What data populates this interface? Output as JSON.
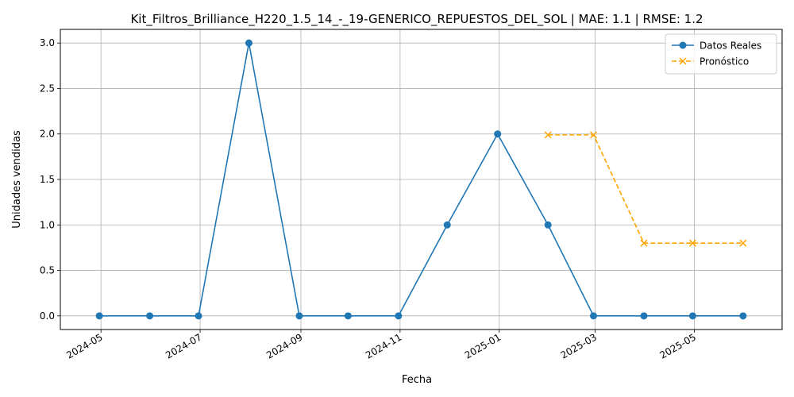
{
  "chart_data": {
    "type": "line",
    "title": "Kit_Filtros_Brilliance_H220_1.5_14_-_19-GENERICO_REPUESTOS_DEL_SOL | MAE: 1.1 | RMSE: 1.2",
    "xlabel": "Fecha",
    "ylabel": "Unidades vendidas",
    "xlim": [
      "2024-04-06",
      "2025-06-24"
    ],
    "ylim": [
      -0.15,
      3.15
    ],
    "grid": true,
    "legend_position": "top-right",
    "x_ticks": [
      "2024-05",
      "2024-07",
      "2024-09",
      "2024-11",
      "2025-01",
      "2025-03",
      "2025-05"
    ],
    "x_tick_dates": [
      "2024-05-01",
      "2024-07-01",
      "2024-09-01",
      "2024-11-01",
      "2025-01-01",
      "2025-03-01",
      "2025-05-01"
    ],
    "y_ticks": [
      "0.0",
      "0.5",
      "1.0",
      "1.5",
      "2.0",
      "2.5",
      "3.0"
    ],
    "y_tick_values": [
      0,
      0.5,
      1,
      1.5,
      2,
      2.5,
      3
    ],
    "series": [
      {
        "name": "Datos Reales",
        "color": "#1f77b4",
        "style": "solid",
        "marker": "circle",
        "x": [
          "2024-04-30",
          "2024-05-31",
          "2024-06-30",
          "2024-07-31",
          "2024-08-31",
          "2024-09-30",
          "2024-10-31",
          "2024-11-30",
          "2024-12-31",
          "2025-01-31",
          "2025-02-28",
          "2025-03-31",
          "2025-04-30",
          "2025-05-31"
        ],
        "values": [
          0,
          0,
          0,
          3,
          0,
          0,
          0,
          1,
          2,
          1,
          0,
          0,
          0,
          0
        ]
      },
      {
        "name": "Pronóstico",
        "color": "#ffa500",
        "style": "dashed",
        "marker": "x",
        "x": [
          "2025-01-31",
          "2025-02-28",
          "2025-03-31",
          "2025-04-30",
          "2025-05-31"
        ],
        "values": [
          1.99,
          1.99,
          0.8,
          0.8,
          0.8
        ]
      }
    ]
  }
}
